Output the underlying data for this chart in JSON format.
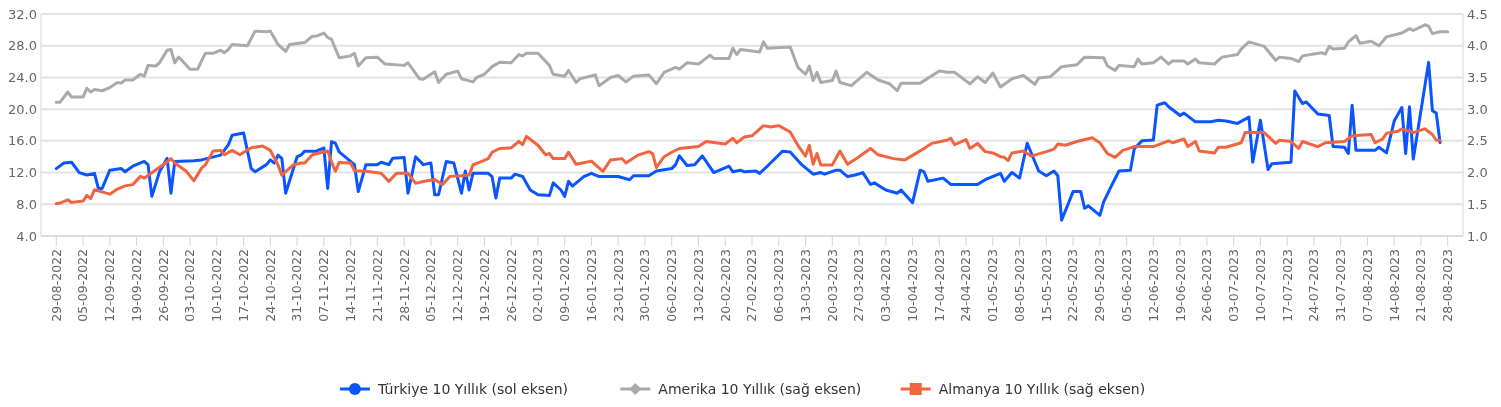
{
  "chart_data": {
    "type": "line",
    "xlim": [
      "2022-08-25",
      "2023-09-01"
    ],
    "xticks": [
      {
        "value": "2022-08-29",
        "label": "29-08-2022"
      },
      {
        "value": "2022-09-05",
        "label": "05-09-2022"
      },
      {
        "value": "2022-09-12",
        "label": "12-09-2022"
      },
      {
        "value": "2022-09-19",
        "label": "19-09-2022"
      },
      {
        "value": "2022-09-26",
        "label": "26-09-2022"
      },
      {
        "value": "2022-10-03",
        "label": "03-10-2022"
      },
      {
        "value": "2022-10-10",
        "label": "10-10-2022"
      },
      {
        "value": "2022-10-17",
        "label": "17-10-2022"
      },
      {
        "value": "2022-10-24",
        "label": "24-10-2022"
      },
      {
        "value": "2022-10-31",
        "label": "31-10-2022"
      },
      {
        "value": "2022-11-07",
        "label": "07-11-2022"
      },
      {
        "value": "2022-11-14",
        "label": "14-11-2022"
      },
      {
        "value": "2022-11-21",
        "label": "21-11-2022"
      },
      {
        "value": "2022-11-28",
        "label": "28-11-2022"
      },
      {
        "value": "2022-12-05",
        "label": "05-12-2022"
      },
      {
        "value": "2022-12-12",
        "label": "12-12-2022"
      },
      {
        "value": "2022-12-19",
        "label": "19-12-2022"
      },
      {
        "value": "2022-12-26",
        "label": "26-12-2022"
      },
      {
        "value": "2023-01-02",
        "label": "02-01-2023"
      },
      {
        "value": "2023-01-09",
        "label": "09-01-2023"
      },
      {
        "value": "2023-01-16",
        "label": "16-01-2023"
      },
      {
        "value": "2023-01-23",
        "label": "23-01-2023"
      },
      {
        "value": "2023-01-30",
        "label": "30-01-2023"
      },
      {
        "value": "2023-02-06",
        "label": "06-02-2023"
      },
      {
        "value": "2023-02-13",
        "label": "13-02-2023"
      },
      {
        "value": "2023-02-20",
        "label": "20-02-2023"
      },
      {
        "value": "2023-02-27",
        "label": "27-02-2023"
      },
      {
        "value": "2023-03-06",
        "label": "06-03-2023"
      },
      {
        "value": "2023-03-13",
        "label": "13-03-2023"
      },
      {
        "value": "2023-03-20",
        "label": "20-03-2023"
      },
      {
        "value": "2023-03-27",
        "label": "27-03-2023"
      },
      {
        "value": "2023-04-03",
        "label": "03-04-2023"
      },
      {
        "value": "2023-04-10",
        "label": "10-04-2023"
      },
      {
        "value": "2023-04-17",
        "label": "17-04-2023"
      },
      {
        "value": "2023-04-24",
        "label": "24-04-2023"
      },
      {
        "value": "2023-05-01",
        "label": "01-05-2023"
      },
      {
        "value": "2023-05-08",
        "label": "08-05-2023"
      },
      {
        "value": "2023-05-15",
        "label": "15-05-2023"
      },
      {
        "value": "2023-05-22",
        "label": "22-05-2023"
      },
      {
        "value": "2023-05-29",
        "label": "29-05-2023"
      },
      {
        "value": "2023-06-05",
        "label": "05-06-2023"
      },
      {
        "value": "2023-06-12",
        "label": "12-06-2023"
      },
      {
        "value": "2023-06-19",
        "label": "19-06-2023"
      },
      {
        "value": "2023-06-26",
        "label": "26-06-2023"
      },
      {
        "value": "2023-07-03",
        "label": "03-07-2023"
      },
      {
        "value": "2023-07-10",
        "label": "10-07-2023"
      },
      {
        "value": "2023-07-17",
        "label": "17-07-2023"
      },
      {
        "value": "2023-07-24",
        "label": "24-07-2023"
      },
      {
        "value": "2023-07-31",
        "label": "31-07-2023"
      },
      {
        "value": "2023-08-07",
        "label": "07-08-2023"
      },
      {
        "value": "2023-08-14",
        "label": "14-08-2023"
      },
      {
        "value": "2023-08-21",
        "label": "21-08-2023"
      },
      {
        "value": "2023-08-28",
        "label": "28-08-2023"
      }
    ],
    "ylim": [
      4,
      32
    ],
    "yticks": [
      {
        "value": 4,
        "label": "4.0"
      },
      {
        "value": 8,
        "label": "8.0"
      },
      {
        "value": 12,
        "label": "12.0"
      },
      {
        "value": 16,
        "label": "16.0"
      },
      {
        "value": 20,
        "label": "20.0"
      },
      {
        "value": 24,
        "label": "24.0"
      },
      {
        "value": 28,
        "label": "28.0"
      },
      {
        "value": 32,
        "label": "32.0"
      }
    ],
    "y2lim": [
      1,
      4.5
    ],
    "y2ticks": [
      {
        "value": 1,
        "label": "1.0"
      },
      {
        "value": 1.5,
        "label": "1.5"
      },
      {
        "value": 2,
        "label": "2.0"
      },
      {
        "value": 2.5,
        "label": "2.5"
      },
      {
        "value": 3,
        "label": "3.0"
      },
      {
        "value": 3.5,
        "label": "3.5"
      },
      {
        "value": 4,
        "label": "4.0"
      },
      {
        "value": 4.5,
        "label": "4.5"
      }
    ],
    "grid": "y",
    "legend": "bottom",
    "line_style": "solid",
    "series": [
      {
        "name": "Türkiye 10 Yıllık (sol eksen)",
        "color": "#0a55ff",
        "x": [
          "2022-08-29",
          "2022-08-31",
          "2022-09-02",
          "2022-09-04",
          "2022-09-06",
          "2022-09-08",
          "2022-09-09",
          "2022-09-10",
          "2022-09-12",
          "2022-09-15",
          "2022-09-16",
          "2022-09-18",
          "2022-09-21",
          "2022-09-22",
          "2022-09-23",
          "2022-09-25",
          "2022-09-27",
          "2022-09-28",
          "2022-09-29",
          "2022-10-04",
          "2022-10-06",
          "2022-10-11",
          "2022-10-13",
          "2022-10-14",
          "2022-10-17",
          "2022-10-19",
          "2022-10-20",
          "2022-10-23",
          "2022-10-24",
          "2022-10-25",
          "2022-10-26",
          "2022-10-27",
          "2022-10-28",
          "2022-10-31",
          "2022-11-01",
          "2022-11-02",
          "2022-11-05",
          "2022-11-07",
          "2022-11-08",
          "2022-11-09",
          "2022-11-10",
          "2022-11-11",
          "2022-11-15",
          "2022-11-16",
          "2022-11-18",
          "2022-11-21",
          "2022-11-22",
          "2022-11-24",
          "2022-11-25",
          "2022-11-28",
          "2022-11-29",
          "2022-12-01",
          "2022-12-03",
          "2022-12-05",
          "2022-12-06",
          "2022-12-07",
          "2022-12-09",
          "2022-12-11",
          "2022-12-13",
          "2022-12-14",
          "2022-12-15",
          "2022-12-16",
          "2022-12-20",
          "2022-12-21",
          "2022-12-22",
          "2022-12-23",
          "2022-12-26",
          "2022-12-27",
          "2022-12-29",
          "2022-12-31",
          "2023-01-02",
          "2023-01-05",
          "2023-01-06",
          "2023-01-08",
          "2023-01-09",
          "2023-01-10",
          "2023-01-11",
          "2023-01-14",
          "2023-01-16",
          "2023-01-18",
          "2023-01-23",
          "2023-01-26",
          "2023-01-27",
          "2023-01-31",
          "2023-02-02",
          "2023-02-06",
          "2023-02-07",
          "2023-02-08",
          "2023-02-10",
          "2023-02-12",
          "2023-02-14",
          "2023-02-17",
          "2023-02-21",
          "2023-02-22",
          "2023-02-24",
          "2023-02-25",
          "2023-02-28",
          "2023-03-01",
          "2023-03-03",
          "2023-03-07",
          "2023-03-09",
          "2023-03-12",
          "2023-03-15",
          "2023-03-17",
          "2023-03-18",
          "2023-03-21",
          "2023-03-22",
          "2023-03-24",
          "2023-03-26",
          "2023-03-28",
          "2023-03-30",
          "2023-03-31",
          "2023-04-03",
          "2023-04-06",
          "2023-04-07",
          "2023-04-10",
          "2023-04-12",
          "2023-04-13",
          "2023-04-14",
          "2023-04-18",
          "2023-04-20",
          "2023-04-25",
          "2023-04-27",
          "2023-04-29",
          "2023-05-03",
          "2023-05-04",
          "2023-05-06",
          "2023-05-08",
          "2023-05-10",
          "2023-05-13",
          "2023-05-15",
          "2023-05-17",
          "2023-05-18",
          "2023-05-19",
          "2023-05-22",
          "2023-05-24",
          "2023-05-25",
          "2023-05-26",
          "2023-05-29",
          "2023-05-30",
          "2023-06-01",
          "2023-06-03",
          "2023-06-06",
          "2023-06-07",
          "2023-06-09",
          "2023-06-12",
          "2023-06-13",
          "2023-06-15",
          "2023-06-16",
          "2023-06-19",
          "2023-06-20",
          "2023-06-23",
          "2023-06-27",
          "2023-06-29",
          "2023-07-01",
          "2023-07-04",
          "2023-07-07",
          "2023-07-08",
          "2023-07-10",
          "2023-07-12",
          "2023-07-13",
          "2023-07-18",
          "2023-07-19",
          "2023-07-21",
          "2023-07-22",
          "2023-07-25",
          "2023-07-28",
          "2023-07-29",
          "2023-08-01",
          "2023-08-02",
          "2023-08-03",
          "2023-08-04",
          "2023-08-09",
          "2023-08-10",
          "2023-08-12",
          "2023-08-14",
          "2023-08-16",
          "2023-08-17",
          "2023-08-18",
          "2023-08-19",
          "2023-08-23",
          "2023-08-24",
          "2023-08-25",
          "2023-08-26"
        ],
        "values": [
          12.5,
          13.2,
          13.3,
          12.0,
          11.7,
          11.9,
          10.0,
          10.0,
          12.3,
          12.5,
          12.1,
          12.8,
          13.4,
          13.0,
          9.0,
          12.1,
          13.8,
          9.4,
          13.4,
          13.5,
          13.6,
          14.2,
          15.5,
          16.7,
          17.0,
          12.5,
          12.1,
          13.0,
          13.6,
          13.2,
          14.2,
          13.8,
          9.4,
          14.0,
          14.2,
          14.7,
          14.7,
          15.1,
          10.0,
          15.9,
          15.7,
          14.6,
          13.0,
          9.6,
          13.0,
          13.0,
          13.3,
          13.0,
          13.8,
          13.9,
          9.4,
          14.0,
          13.0,
          13.2,
          9.2,
          9.2,
          13.4,
          13.2,
          9.4,
          12.2,
          9.8,
          11.9,
          11.9,
          11.5,
          8.8,
          11.3,
          11.3,
          11.8,
          11.5,
          9.8,
          9.2,
          9.1,
          10.7,
          9.8,
          9.0,
          10.9,
          10.3,
          11.5,
          11.9,
          11.5,
          11.5,
          11.1,
          11.6,
          11.6,
          12.2,
          12.5,
          13.0,
          14.1,
          12.9,
          13.0,
          14.1,
          12.0,
          12.8,
          12.1,
          12.3,
          12.1,
          12.2,
          11.9,
          12.8,
          14.7,
          14.6,
          13.0,
          11.8,
          12.0,
          11.8,
          12.3,
          12.3,
          11.5,
          11.7,
          12.0,
          10.5,
          10.7,
          9.8,
          9.4,
          9.8,
          8.2,
          12.3,
          12.1,
          10.9,
          11.3,
          10.5,
          10.5,
          10.5,
          11.1,
          11.9,
          10.9,
          12.0,
          11.3,
          15.7,
          12.2,
          11.6,
          12.2,
          11.6,
          6.0,
          9.6,
          9.6,
          7.5,
          7.8,
          6.6,
          8.3,
          10.3,
          12.2,
          12.3,
          15.0,
          16.0,
          16.1,
          20.5,
          20.8,
          20.3,
          19.2,
          19.5,
          18.4,
          18.4,
          18.6,
          18.5,
          18.2,
          19.0,
          13.3,
          18.6,
          12.4,
          13.1,
          13.3,
          22.3,
          20.7,
          20.9,
          19.4,
          19.2,
          15.3,
          15.2,
          14.4,
          20.5,
          14.8,
          14.8,
          15.2,
          14.5,
          18.5,
          20.2,
          14.4,
          20.3,
          13.7,
          25.9,
          19.8,
          19.5,
          15.8
        ]
      },
      {
        "name": "Amerika 10 Yıllık (sağ eksen)",
        "color": "#aaaaaa",
        "axis": "y2",
        "x": [
          "2022-08-29",
          "2022-08-30",
          "2022-09-01",
          "2022-09-02",
          "2022-09-05",
          "2022-09-06",
          "2022-09-07",
          "2022-09-08",
          "2022-09-10",
          "2022-09-12",
          "2022-09-14",
          "2022-09-15",
          "2022-09-16",
          "2022-09-18",
          "2022-09-20",
          "2022-09-21",
          "2022-09-22",
          "2022-09-24",
          "2022-09-25",
          "2022-09-27",
          "2022-09-28",
          "2022-09-29",
          "2022-09-30",
          "2022-10-01",
          "2022-10-03",
          "2022-10-05",
          "2022-10-06",
          "2022-10-07",
          "2022-10-09",
          "2022-10-11",
          "2022-10-12",
          "2022-10-13",
          "2022-10-14",
          "2022-10-18",
          "2022-10-20",
          "2022-10-23",
          "2022-10-24",
          "2022-10-26",
          "2022-10-28",
          "2022-10-29",
          "2022-11-02",
          "2022-11-04",
          "2022-11-05",
          "2022-11-07",
          "2022-11-08",
          "2022-11-09",
          "2022-11-11",
          "2022-11-14",
          "2022-11-15",
          "2022-11-16",
          "2022-11-18",
          "2022-11-21",
          "2022-11-23",
          "2022-11-28",
          "2022-11-29",
          "2022-12-02",
          "2022-12-03",
          "2022-12-06",
          "2022-12-07",
          "2022-12-09",
          "2022-12-12",
          "2022-12-13",
          "2022-12-16",
          "2022-12-17",
          "2022-12-19",
          "2022-12-21",
          "2022-12-23",
          "2022-12-26",
          "2022-12-28",
          "2022-12-29",
          "2022-12-30",
          "2023-01-02",
          "2023-01-05",
          "2023-01-06",
          "2023-01-09",
          "2023-01-10",
          "2023-01-12",
          "2023-01-13",
          "2023-01-17",
          "2023-01-18",
          "2023-01-21",
          "2023-01-23",
          "2023-01-25",
          "2023-01-27",
          "2023-01-31",
          "2023-02-02",
          "2023-02-04",
          "2023-02-07",
          "2023-02-08",
          "2023-02-10",
          "2023-02-13",
          "2023-02-16",
          "2023-02-17",
          "2023-02-21",
          "2023-02-22",
          "2023-02-23",
          "2023-02-24",
          "2023-03-01",
          "2023-03-02",
          "2023-03-03",
          "2023-03-09",
          "2023-03-11",
          "2023-03-13",
          "2023-03-14",
          "2023-03-15",
          "2023-03-16",
          "2023-03-17",
          "2023-03-20",
          "2023-03-21",
          "2023-03-22",
          "2023-03-25",
          "2023-03-29",
          "2023-04-01",
          "2023-04-04",
          "2023-04-06",
          "2023-04-07",
          "2023-04-12",
          "2023-04-17",
          "2023-04-19",
          "2023-04-21",
          "2023-04-25",
          "2023-04-27",
          "2023-04-29",
          "2023-05-01",
          "2023-05-03",
          "2023-05-06",
          "2023-05-09",
          "2023-05-12",
          "2023-05-13",
          "2023-05-16",
          "2023-05-19",
          "2023-05-23",
          "2023-05-25",
          "2023-05-30",
          "2023-05-31",
          "2023-06-02",
          "2023-06-03",
          "2023-06-07",
          "2023-06-08",
          "2023-06-09",
          "2023-06-12",
          "2023-06-14",
          "2023-06-16",
          "2023-06-17",
          "2023-06-20",
          "2023-06-21",
          "2023-06-23",
          "2023-06-24",
          "2023-06-28",
          "2023-06-29",
          "2023-06-30",
          "2023-07-04",
          "2023-07-05",
          "2023-07-07",
          "2023-07-11",
          "2023-07-14",
          "2023-07-15",
          "2023-07-18",
          "2023-07-20",
          "2023-07-21",
          "2023-07-26",
          "2023-07-27",
          "2023-07-28",
          "2023-07-29",
          "2023-08-01",
          "2023-08-02",
          "2023-08-04",
          "2023-08-05",
          "2023-08-08",
          "2023-08-10",
          "2023-08-12",
          "2023-08-16",
          "2023-08-18",
          "2023-08-19",
          "2023-08-22",
          "2023-08-23",
          "2023-08-24",
          "2023-08-26",
          "2023-08-28"
        ],
        "values": [
          3.11,
          3.11,
          3.27,
          3.19,
          3.19,
          3.33,
          3.27,
          3.31,
          3.29,
          3.34,
          3.42,
          3.41,
          3.46,
          3.46,
          3.55,
          3.52,
          3.69,
          3.68,
          3.73,
          3.93,
          3.94,
          3.73,
          3.82,
          3.76,
          3.63,
          3.63,
          3.76,
          3.88,
          3.88,
          3.93,
          3.89,
          3.94,
          4.02,
          4.0,
          4.23,
          4.22,
          4.23,
          4.02,
          3.91,
          4.02,
          4.05,
          4.15,
          4.15,
          4.2,
          4.13,
          4.1,
          3.81,
          3.84,
          3.88,
          3.68,
          3.81,
          3.82,
          3.71,
          3.69,
          3.73,
          3.48,
          3.47,
          3.59,
          3.42,
          3.55,
          3.6,
          3.48,
          3.43,
          3.5,
          3.55,
          3.67,
          3.74,
          3.73,
          3.86,
          3.84,
          3.88,
          3.88,
          3.69,
          3.55,
          3.52,
          3.61,
          3.42,
          3.48,
          3.54,
          3.37,
          3.5,
          3.53,
          3.43,
          3.52,
          3.54,
          3.4,
          3.58,
          3.66,
          3.63,
          3.73,
          3.71,
          3.85,
          3.8,
          3.8,
          3.96,
          3.86,
          3.94,
          3.9,
          4.06,
          3.96,
          3.98,
          3.66,
          3.55,
          3.68,
          3.45,
          3.58,
          3.42,
          3.45,
          3.6,
          3.42,
          3.37,
          3.58,
          3.46,
          3.4,
          3.29,
          3.41,
          3.41,
          3.6,
          3.58,
          3.58,
          3.4,
          3.51,
          3.42,
          3.57,
          3.35,
          3.48,
          3.53,
          3.39,
          3.49,
          3.51,
          3.67,
          3.7,
          3.82,
          3.81,
          3.68,
          3.61,
          3.69,
          3.67,
          3.79,
          3.71,
          3.73,
          3.82,
          3.71,
          3.76,
          3.76,
          3.71,
          3.79,
          3.73,
          3.71,
          3.77,
          3.82,
          3.86,
          3.95,
          4.06,
          3.99,
          3.77,
          3.82,
          3.8,
          3.75,
          3.84,
          3.89,
          3.87,
          3.99,
          3.95,
          3.96,
          4.06,
          4.16,
          4.04,
          4.07,
          4.0,
          4.14,
          4.2,
          4.27,
          4.24,
          4.33,
          4.31,
          4.19,
          4.22,
          4.22
        ]
      },
      {
        "name": "Almanya 10 Yıllık (sağ eksen)",
        "color": "#f26440",
        "axis": "y2",
        "x": [
          "2022-08-29",
          "2022-08-30",
          "2022-09-01",
          "2022-09-02",
          "2022-09-05",
          "2022-09-06",
          "2022-09-07",
          "2022-09-08",
          "2022-09-12",
          "2022-09-14",
          "2022-09-16",
          "2022-09-18",
          "2022-09-20",
          "2022-09-21",
          "2022-09-24",
          "2022-09-27",
          "2022-09-28",
          "2022-09-29",
          "2022-10-02",
          "2022-10-04",
          "2022-10-06",
          "2022-10-07",
          "2022-10-09",
          "2022-10-11",
          "2022-10-12",
          "2022-10-14",
          "2022-10-16",
          "2022-10-19",
          "2022-10-22",
          "2022-10-24",
          "2022-10-26",
          "2022-10-27",
          "2022-10-30",
          "2022-11-01",
          "2022-11-02",
          "2022-11-04",
          "2022-11-08",
          "2022-11-09",
          "2022-11-10",
          "2022-11-11",
          "2022-11-14",
          "2022-11-15",
          "2022-11-18",
          "2022-11-22",
          "2022-11-24",
          "2022-11-26",
          "2022-11-29",
          "2022-12-01",
          "2022-12-03",
          "2022-12-06",
          "2022-12-08",
          "2022-12-10",
          "2022-12-13",
          "2022-12-15",
          "2022-12-16",
          "2022-12-18",
          "2022-12-20",
          "2022-12-21",
          "2022-12-23",
          "2022-12-26",
          "2022-12-28",
          "2022-12-29",
          "2022-12-30",
          "2023-01-02",
          "2023-01-04",
          "2023-01-05",
          "2023-01-06",
          "2023-01-09",
          "2023-01-10",
          "2023-01-12",
          "2023-01-16",
          "2023-01-19",
          "2023-01-21",
          "2023-01-24",
          "2023-01-25",
          "2023-01-28",
          "2023-01-31",
          "2023-02-01",
          "2023-02-02",
          "2023-02-04",
          "2023-02-06",
          "2023-02-08",
          "2023-02-13",
          "2023-02-15",
          "2023-02-20",
          "2023-02-22",
          "2023-02-23",
          "2023-02-25",
          "2023-02-27",
          "2023-03-02",
          "2023-03-04",
          "2023-03-06",
          "2023-03-09",
          "2023-03-11",
          "2023-03-13",
          "2023-03-14",
          "2023-03-15",
          "2023-03-16",
          "2023-03-17",
          "2023-03-20",
          "2023-03-22",
          "2023-03-24",
          "2023-03-27",
          "2023-03-30",
          "2023-04-01",
          "2023-04-05",
          "2023-04-08",
          "2023-04-13",
          "2023-04-15",
          "2023-04-19",
          "2023-04-20",
          "2023-04-21",
          "2023-04-24",
          "2023-04-25",
          "2023-04-27",
          "2023-04-29",
          "2023-05-01",
          "2023-05-03",
          "2023-05-04",
          "2023-05-05",
          "2023-05-06",
          "2023-05-09",
          "2023-05-11",
          "2023-05-15",
          "2023-05-17",
          "2023-05-18",
          "2023-05-20",
          "2023-05-23",
          "2023-05-27",
          "2023-05-29",
          "2023-05-31",
          "2023-06-02",
          "2023-06-04",
          "2023-06-07",
          "2023-06-12",
          "2023-06-16",
          "2023-06-17",
          "2023-06-20",
          "2023-06-21",
          "2023-06-23",
          "2023-06-24",
          "2023-06-28",
          "2023-06-29",
          "2023-07-01",
          "2023-07-05",
          "2023-07-06",
          "2023-07-11",
          "2023-07-14",
          "2023-07-15",
          "2023-07-18",
          "2023-07-20",
          "2023-07-21",
          "2023-07-25",
          "2023-07-27",
          "2023-08-01",
          "2023-08-03",
          "2023-08-08",
          "2023-08-09",
          "2023-08-11",
          "2023-08-12",
          "2023-08-15",
          "2023-08-16",
          "2023-08-19",
          "2023-08-22",
          "2023-08-24",
          "2023-08-25",
          "2023-08-26"
        ],
        "values": [
          1.51,
          1.52,
          1.57,
          1.53,
          1.55,
          1.64,
          1.59,
          1.73,
          1.66,
          1.74,
          1.79,
          1.81,
          1.94,
          1.91,
          2.04,
          2.17,
          2.22,
          2.15,
          2.02,
          1.87,
          2.07,
          2.12,
          2.34,
          2.35,
          2.28,
          2.35,
          2.28,
          2.39,
          2.42,
          2.35,
          2.12,
          1.96,
          2.12,
          2.15,
          2.15,
          2.28,
          2.34,
          2.17,
          2.02,
          2.16,
          2.15,
          2.03,
          2.02,
          1.99,
          1.86,
          1.99,
          1.99,
          1.83,
          1.86,
          1.89,
          1.81,
          1.94,
          1.95,
          1.96,
          2.12,
          2.17,
          2.22,
          2.32,
          2.38,
          2.39,
          2.49,
          2.44,
          2.57,
          2.43,
          2.28,
          2.3,
          2.22,
          2.22,
          2.32,
          2.13,
          2.18,
          2.02,
          2.2,
          2.22,
          2.15,
          2.27,
          2.33,
          2.3,
          2.08,
          2.25,
          2.32,
          2.38,
          2.41,
          2.49,
          2.45,
          2.54,
          2.47,
          2.56,
          2.58,
          2.74,
          2.72,
          2.74,
          2.64,
          2.43,
          2.26,
          2.43,
          2.13,
          2.3,
          2.12,
          2.12,
          2.34,
          2.13,
          2.25,
          2.38,
          2.28,
          2.22,
          2.2,
          2.38,
          2.46,
          2.51,
          2.54,
          2.44,
          2.52,
          2.38,
          2.46,
          2.33,
          2.31,
          2.25,
          2.24,
          2.19,
          2.31,
          2.34,
          2.26,
          2.33,
          2.37,
          2.45,
          2.43,
          2.49,
          2.55,
          2.47,
          2.3,
          2.24,
          2.35,
          2.41,
          2.41,
          2.5,
          2.47,
          2.53,
          2.41,
          2.49,
          2.34,
          2.31,
          2.4,
          2.4,
          2.47,
          2.63,
          2.63,
          2.46,
          2.51,
          2.49,
          2.38,
          2.49,
          2.41,
          2.47,
          2.49,
          2.58,
          2.6,
          2.47,
          2.53,
          2.62,
          2.65,
          2.69,
          2.63,
          2.69,
          2.6,
          2.51,
          2.51
        ]
      }
    ]
  }
}
